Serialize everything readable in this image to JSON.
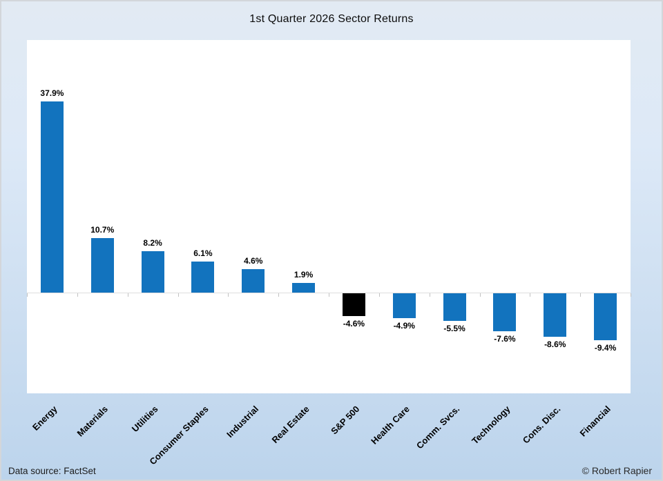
{
  "title": "1st Quarter 2026 Sector Returns",
  "footer": {
    "data_source": "Data source: FactSet",
    "copyright": "© Robert Rapier"
  },
  "theme": {
    "background_top": "#e2eaf3",
    "background_bottom": "#bcd4ec",
    "plot_background": "#ffffff",
    "axis_color": "#dddddd",
    "tick_color": "#c2c2c2",
    "text_color": "#000000"
  },
  "chart_data": {
    "type": "bar",
    "title": "1st Quarter 2026 Sector Returns",
    "xlabel": "",
    "ylabel": "",
    "grid": false,
    "legend": false,
    "ylim": [
      -20,
      50
    ],
    "label_rotation_deg": 45,
    "categories": [
      "Energy",
      "Materials",
      "Utilities",
      "Consumer Staples",
      "Industrial",
      "Real Estate",
      "S&P 500",
      "Health Care",
      "Comm. Svcs.",
      "Technology",
      "Cons. Disc.",
      "Financial"
    ],
    "values": [
      37.9,
      10.7,
      8.2,
      6.1,
      4.6,
      1.9,
      -4.6,
      -4.9,
      -5.5,
      -7.6,
      -8.6,
      -9.4
    ],
    "value_labels": [
      "37.9%",
      "10.7%",
      "8.2%",
      "6.1%",
      "4.6%",
      "1.9%",
      "-4.6%",
      "-4.9%",
      "-5.5%",
      "-7.6%",
      "-8.6%",
      "-9.4%"
    ],
    "bar_colors": [
      "#1273be",
      "#1273be",
      "#1273be",
      "#1273be",
      "#1273be",
      "#1273be",
      "#000000",
      "#1273be",
      "#1273be",
      "#1273be",
      "#1273be",
      "#1273be"
    ]
  }
}
